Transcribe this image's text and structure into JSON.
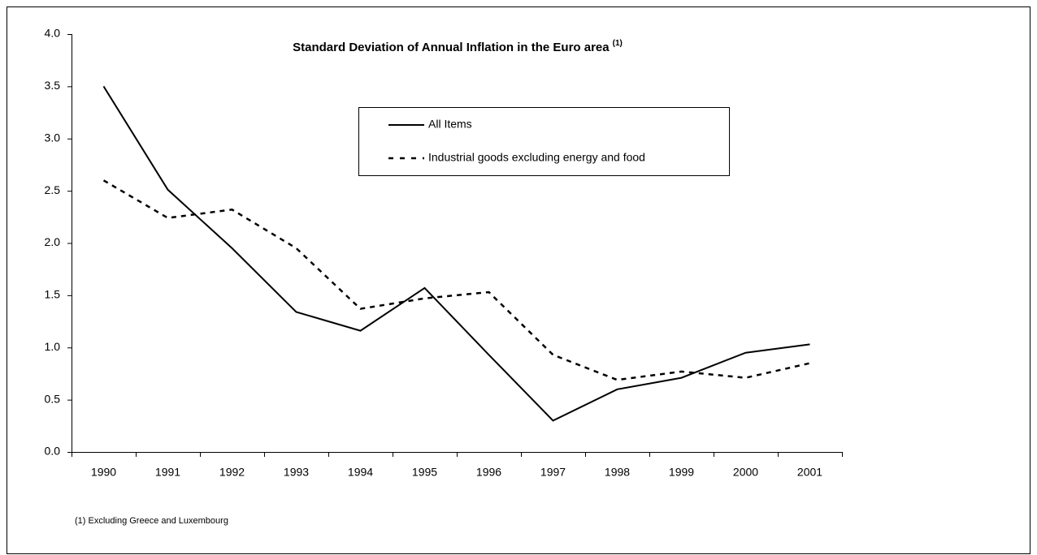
{
  "chart_data": {
    "type": "line",
    "title": "Standard Deviation of Annual Inflation in the Euro area",
    "title_note": "(1)",
    "footnote": "(1) Excluding Greece and Luxembourg",
    "categories": [
      "1990",
      "1991",
      "1992",
      "1993",
      "1994",
      "1995",
      "1996",
      "1997",
      "1998",
      "1999",
      "2000",
      "2001"
    ],
    "series": [
      {
        "name": "All Items",
        "color": "#000000",
        "line_style": "solid",
        "values": [
          3.5,
          2.51,
          1.95,
          1.34,
          1.16,
          1.57,
          0.93,
          0.3,
          0.6,
          0.71,
          0.95,
          1.03
        ]
      },
      {
        "name": "Industrial goods excluding energy and food",
        "color": "#000000",
        "line_style": "dashed",
        "values": [
          2.6,
          2.24,
          2.32,
          1.95,
          1.37,
          1.47,
          1.53,
          0.93,
          0.69,
          0.77,
          0.71,
          0.85
        ]
      }
    ],
    "ylim": [
      0,
      4
    ],
    "yticks": [
      {
        "value": 0,
        "label": "0.0"
      },
      {
        "value": 0.5,
        "label": "0.5"
      },
      {
        "value": 1,
        "label": "1.0"
      },
      {
        "value": 1.5,
        "label": "1.5"
      },
      {
        "value": 2,
        "label": "2.0"
      },
      {
        "value": 2.5,
        "label": "2.5"
      },
      {
        "value": 3,
        "label": "3.0"
      },
      {
        "value": 3.5,
        "label": "3.5"
      },
      {
        "value": 4,
        "label": "4.0"
      }
    ],
    "grid": false
  }
}
